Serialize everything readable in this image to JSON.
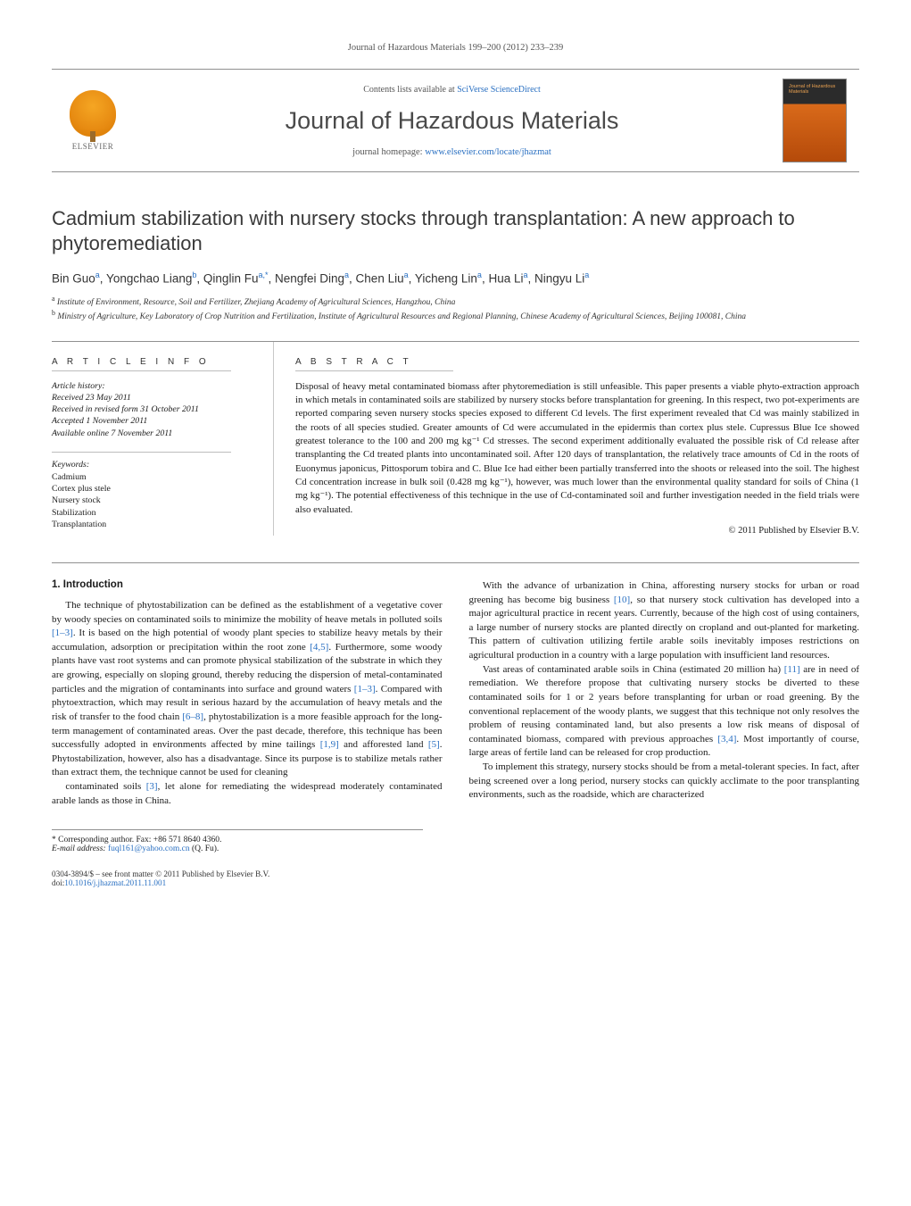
{
  "running_head": "Journal of Hazardous Materials 199–200 (2012) 233–239",
  "masthead": {
    "contents_prefix": "Contents lists available at ",
    "contents_link_text": "SciVerse ScienceDirect",
    "journal_name": "Journal of Hazardous Materials",
    "homepage_prefix": "journal homepage: ",
    "homepage_link_text": "www.elsevier.com/locate/jhazmat",
    "elsevier_word": "ELSEVIER",
    "cover_label": "Journal of\nHazardous\nMaterials"
  },
  "title": "Cadmium stabilization with nursery stocks through transplantation: A new approach to phytoremediation",
  "authors_html": "Bin Guo<sup>a</sup>, Yongchao Liang<sup>b</sup>, Qinglin Fu<sup>a,*</sup>, Nengfei Ding<sup>a</sup>, Chen Liu<sup>a</sup>, Yicheng Lin<sup>a</sup>, Hua Li<sup>a</sup>, Ningyu Li<sup>a</sup>",
  "affiliations": [
    {
      "key": "a",
      "text": "Institute of Environment, Resource, Soil and Fertilizer, Zhejiang Academy of Agricultural Sciences, Hangzhou, China"
    },
    {
      "key": "b",
      "text": "Ministry of Agriculture, Key Laboratory of Crop Nutrition and Fertilization, Institute of Agricultural Resources and Regional Planning, Chinese Academy of Agricultural Sciences, Beijing 100081, China"
    }
  ],
  "article_info": {
    "heading": "A R T I C L E   I N F O",
    "history_label": "Article history:",
    "history": [
      "Received 23 May 2011",
      "Received in revised form 31 October 2011",
      "Accepted 1 November 2011",
      "Available online 7 November 2011"
    ],
    "keywords_label": "Keywords:",
    "keywords": [
      "Cadmium",
      "Cortex plus stele",
      "Nursery stock",
      "Stabilization",
      "Transplantation"
    ]
  },
  "abstract": {
    "heading": "A B S T R A C T",
    "text": "Disposal of heavy metal contaminated biomass after phytoremediation is still unfeasible. This paper presents a viable phyto-extraction approach in which metals in contaminated soils are stabilized by nursery stocks before transplantation for greening. In this respect, two pot-experiments are reported comparing seven nursery stocks species exposed to different Cd levels. The first experiment revealed that Cd was mainly stabilized in the roots of all species studied. Greater amounts of Cd were accumulated in the epidermis than cortex plus stele. Cupressus Blue Ice showed greatest tolerance to the 100 and 200 mg kg⁻¹ Cd stresses. The second experiment additionally evaluated the possible risk of Cd release after transplanting the Cd treated plants into uncontaminated soil. After 120 days of transplantation, the relatively trace amounts of Cd in the roots of Euonymus japonicus, Pittosporum tobira and C. Blue Ice had either been partially transferred into the shoots or released into the soil. The highest Cd concentration increase in bulk soil (0.428 mg kg⁻¹), however, was much lower than the environmental quality standard for soils of China (1 mg kg⁻¹). The potential effectiveness of this technique in the use of Cd-contaminated soil and further investigation needed in the field trials were also evaluated.",
    "copyright": "© 2011 Published by Elsevier B.V."
  },
  "sections": {
    "intro_heading": "1.  Introduction",
    "paragraphs": [
      "The technique of phytostabilization can be defined as the establishment of a vegetative cover by woody species on contaminated soils to minimize the mobility of heave metals in polluted soils [1–3]. It is based on the high potential of woody plant species to stabilize heavy metals by their accumulation, adsorption or precipitation within the root zone [4,5]. Furthermore, some woody plants have vast root systems and can promote physical stabilization of the substrate in which they are growing, especially on sloping ground, thereby reducing the dispersion of metal-contaminated particles and the migration of contaminants into surface and ground waters [1–3]. Compared with phytoextraction, which may result in serious hazard by the accumulation of heavy metals and the risk of transfer to the food chain [6–8], phytostabilization is a more feasible approach for the long-term management of contaminated areas. Over the past decade, therefore, this technique has been successfully adopted in environments affected by mine tailings [1,9] and afforested land [5]. Phytostabilization, however, also has a disadvantage. Since its purpose is to stabilize metals rather than extract them, the technique cannot be used for cleaning",
      "contaminated soils [3], let alone for remediating the widespread moderately contaminated arable lands as those in China.",
      "With the advance of urbanization in China, afforesting nursery stocks for urban or road greening has become big business [10], so that nursery stock cultivation has developed into a major agricultural practice in recent years. Currently, because of the high cost of using containers, a large number of nursery stocks are planted directly on cropland and out-planted for marketing. This pattern of cultivation utilizing fertile arable soils inevitably imposes restrictions on agricultural production in a country with a large population with insufficient land resources.",
      "Vast areas of contaminated arable soils in China (estimated 20 million ha) [11] are in need of remediation. We therefore propose that cultivating nursery stocks be diverted to these contaminated soils for 1 or 2 years before transplanting for urban or road greening. By the conventional replacement of the woody plants, we suggest that this technique not only resolves the problem of reusing contaminated land, but also presents a low risk means of disposal of contaminated biomass, compared with previous approaches [3,4]. Most importantly of course, large areas of fertile land can be released for crop production.",
      "To implement this strategy, nursery stocks should be from a metal-tolerant species. In fact, after being screened over a long period, nursery stocks can quickly acclimate to the poor transplanting environments, such as the roadside, which are characterized"
    ],
    "ref_links": [
      "[1–3]",
      "[4,5]",
      "[1–3]",
      "[6–8]",
      "[1,9]",
      "[5]",
      "[3]",
      "[10]",
      "[11]",
      "[3,4]"
    ]
  },
  "footnotes": {
    "corr": "* Corresponding author. Fax: +86 571 8640 4360.",
    "email_label": "E-mail address: ",
    "email": "fuql161@yahoo.com.cn",
    "email_suffix": " (Q. Fu)."
  },
  "footer": {
    "left": "0304-3894/$ – see front matter © 2011 Published by Elsevier B.V.",
    "doi_label": "doi:",
    "doi": "10.1016/j.jhazmat.2011.11.001"
  },
  "colors": {
    "link": "#2a70c2",
    "rule": "#909090",
    "text": "#1a1a1a"
  }
}
